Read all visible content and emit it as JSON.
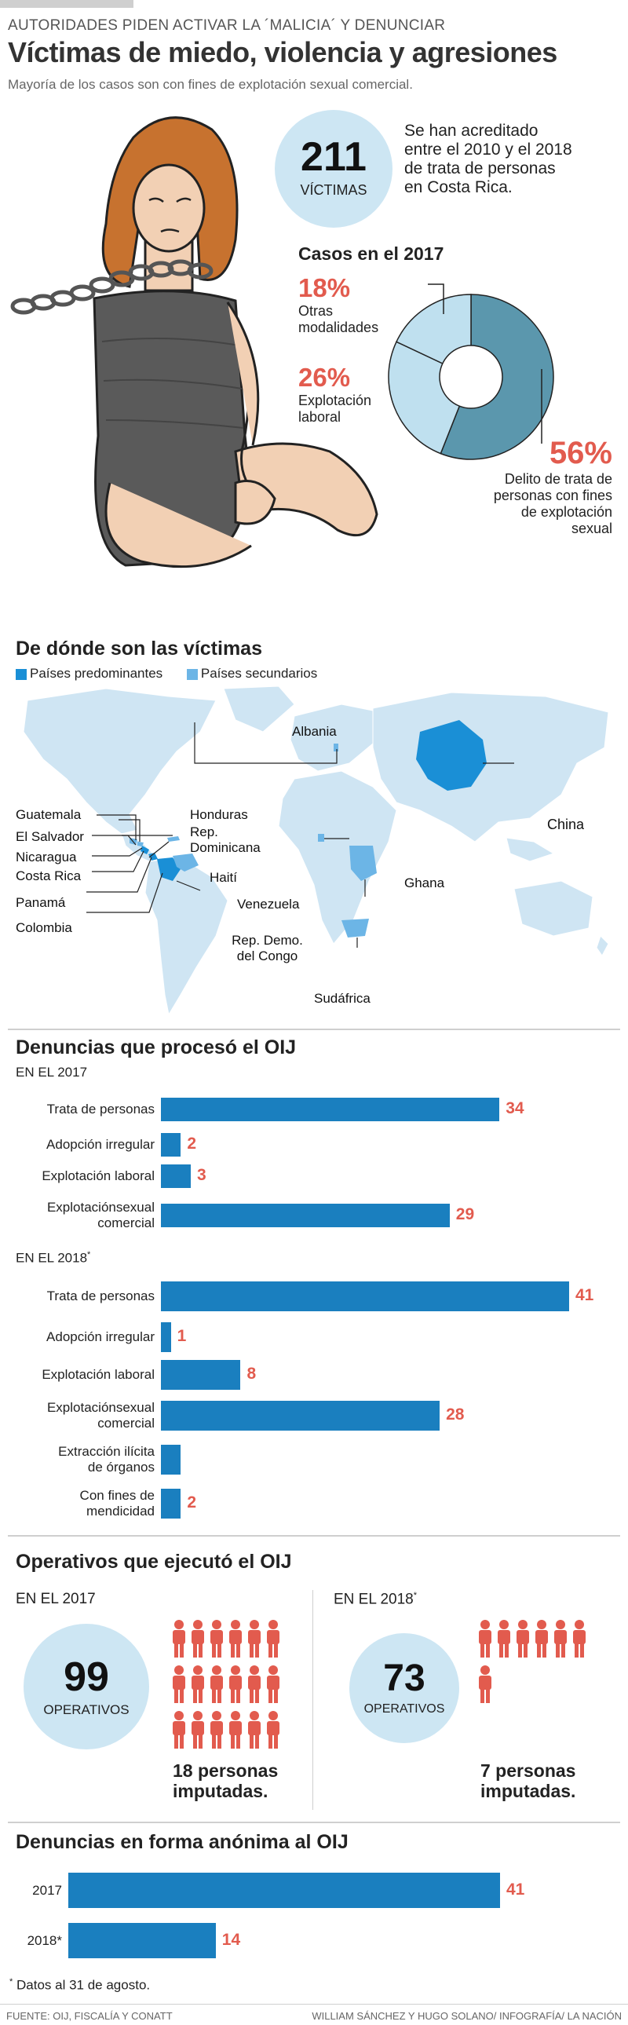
{
  "header": {
    "kicker": "AUTORIDADES PIDEN ACTIVAR LA ´MALICIA´ Y DENUNCIAR",
    "title": "Víctimas de miedo, violencia y agresiones",
    "subtitle": "Mayoría de los casos son con fines de explotación sexual comercial."
  },
  "victims": {
    "number": "211",
    "label": "VÍCTIMAS",
    "text_lines": [
      "Se han acreditado",
      "entre el  2010 y el 2018",
      "de trata de personas",
      "en Costa Rica."
    ]
  },
  "cases2017": {
    "title": "Casos en el 2017",
    "slices": [
      {
        "pct": "18%",
        "lines": [
          "Otras",
          "modalidades"
        ]
      },
      {
        "pct": "26%",
        "lines": [
          "Explotación",
          "laboral"
        ]
      },
      {
        "pct": "56%",
        "lines": [
          "Delito de trata de",
          "personas con fines",
          "de explotación",
          "sexual"
        ]
      }
    ]
  },
  "map": {
    "title": "De dónde son las víctimas",
    "legend_primary": "Países predominantes",
    "legend_secondary": "Países secundarios",
    "labels": {
      "guatemala": "Guatemala",
      "el_salvador": "El Salvador",
      "nicaragua": "Nicaragua",
      "costa_rica": "Costa Rica",
      "panama": "Panamá",
      "colombia": "Colombia",
      "honduras": "Honduras",
      "rep_dom_1": "Rep.",
      "rep_dom_2": "Dominicana",
      "haiti": "Haití",
      "venezuela": "Venezuela",
      "albania": "Albania",
      "china": "China",
      "ghana": "Ghana",
      "congo_1": "Rep. Demo.",
      "congo_2": "del Congo",
      "sudafrica": "Sudáfrica"
    }
  },
  "denuncias": {
    "title": "Denuncias que procesó el OIJ",
    "year2017_label": "EN EL 2017",
    "year2018_label": "EN EL 2018",
    "asterisk": "*"
  },
  "operativos": {
    "title": "Operativos que ejecutó el OIJ",
    "y2017": {
      "label": "EN EL 2017",
      "number": "99",
      "caption": "OPERATIVOS",
      "imputados_lines": [
        "18 personas",
        "imputadas."
      ]
    },
    "y2018": {
      "label": "EN EL 2018",
      "asterisk": "*",
      "number": "73",
      "caption": "OPERATIVOS",
      "imputados_lines": [
        "7 personas",
        "imputadas."
      ]
    }
  },
  "anonimas": {
    "title": "Denuncias en forma anónima al OIJ"
  },
  "footnote": {
    "asterisk": "*",
    "text": " Datos al 31 de agosto."
  },
  "footer": {
    "source": "FUENTE: OIJ, FISCALÍA Y CONATT",
    "credits": "WILLIAM SÁNCHEZ Y HUGO SOLANO/ INFOGRAFÍA/ LA NACIÓN"
  },
  "colors": {
    "bar": "#1a7fbf",
    "value": "#e25b4e",
    "map_land": "#cfe5f3",
    "map_primary": "#1a8fd6",
    "map_secondary": "#6cb5e6",
    "donut_main": "#5b97ad",
    "donut_light": "#bfe0ef"
  },
  "chart_data": [
    {
      "type": "pie",
      "title": "Casos en el 2017",
      "categories": [
        "Otras modalidades",
        "Explotación laboral",
        "Delito de trata de personas con fines de explotación sexual"
      ],
      "values": [
        18,
        26,
        56
      ]
    },
    {
      "type": "bar",
      "title": "Denuncias que procesó el OIJ",
      "subtitle": "EN EL 2017",
      "categories": [
        "Trata de personas",
        "Adopción irregular",
        "Explotación laboral",
        "Explotaciónsexual comercial"
      ],
      "category_lines": [
        [
          "Trata de personas"
        ],
        [
          "Adopción irregular"
        ],
        [
          "Explotación laboral"
        ],
        [
          "Explotaciónsexual",
          "comercial"
        ]
      ],
      "values": [
        34,
        2,
        3,
        29
      ],
      "value_labels": [
        "34",
        "2",
        "3",
        "29"
      ]
    },
    {
      "type": "bar",
      "subtitle": "EN EL 2018*",
      "categories": [
        "Trata de personas",
        "Adopción irregular",
        "Explotación laboral",
        "Explotaciónsexual comercial",
        "Extracción ilícita de órganos",
        "Con fines de mendicidad"
      ],
      "category_lines": [
        [
          "Trata de personas"
        ],
        [
          "Adopción irregular"
        ],
        [
          "Explotación laboral"
        ],
        [
          "Explotaciónsexual",
          "comercial"
        ],
        [
          "Extracción ilícita",
          "de órganos"
        ],
        [
          "Con fines de",
          "mendicidad"
        ]
      ],
      "values": [
        41,
        1,
        8,
        28,
        2,
        2
      ],
      "value_labels": [
        "41",
        "1",
        "8",
        "28",
        "",
        "2"
      ]
    },
    {
      "type": "bar",
      "title": "Denuncias en forma anónima al OIJ",
      "categories": [
        "2017",
        "2018*"
      ],
      "values": [
        41,
        14
      ],
      "value_labels": [
        "41",
        "14"
      ]
    }
  ],
  "icons": {
    "imputados_2017_count": 18,
    "imputados_2018_count": 7,
    "icon_name": "person-icon"
  }
}
